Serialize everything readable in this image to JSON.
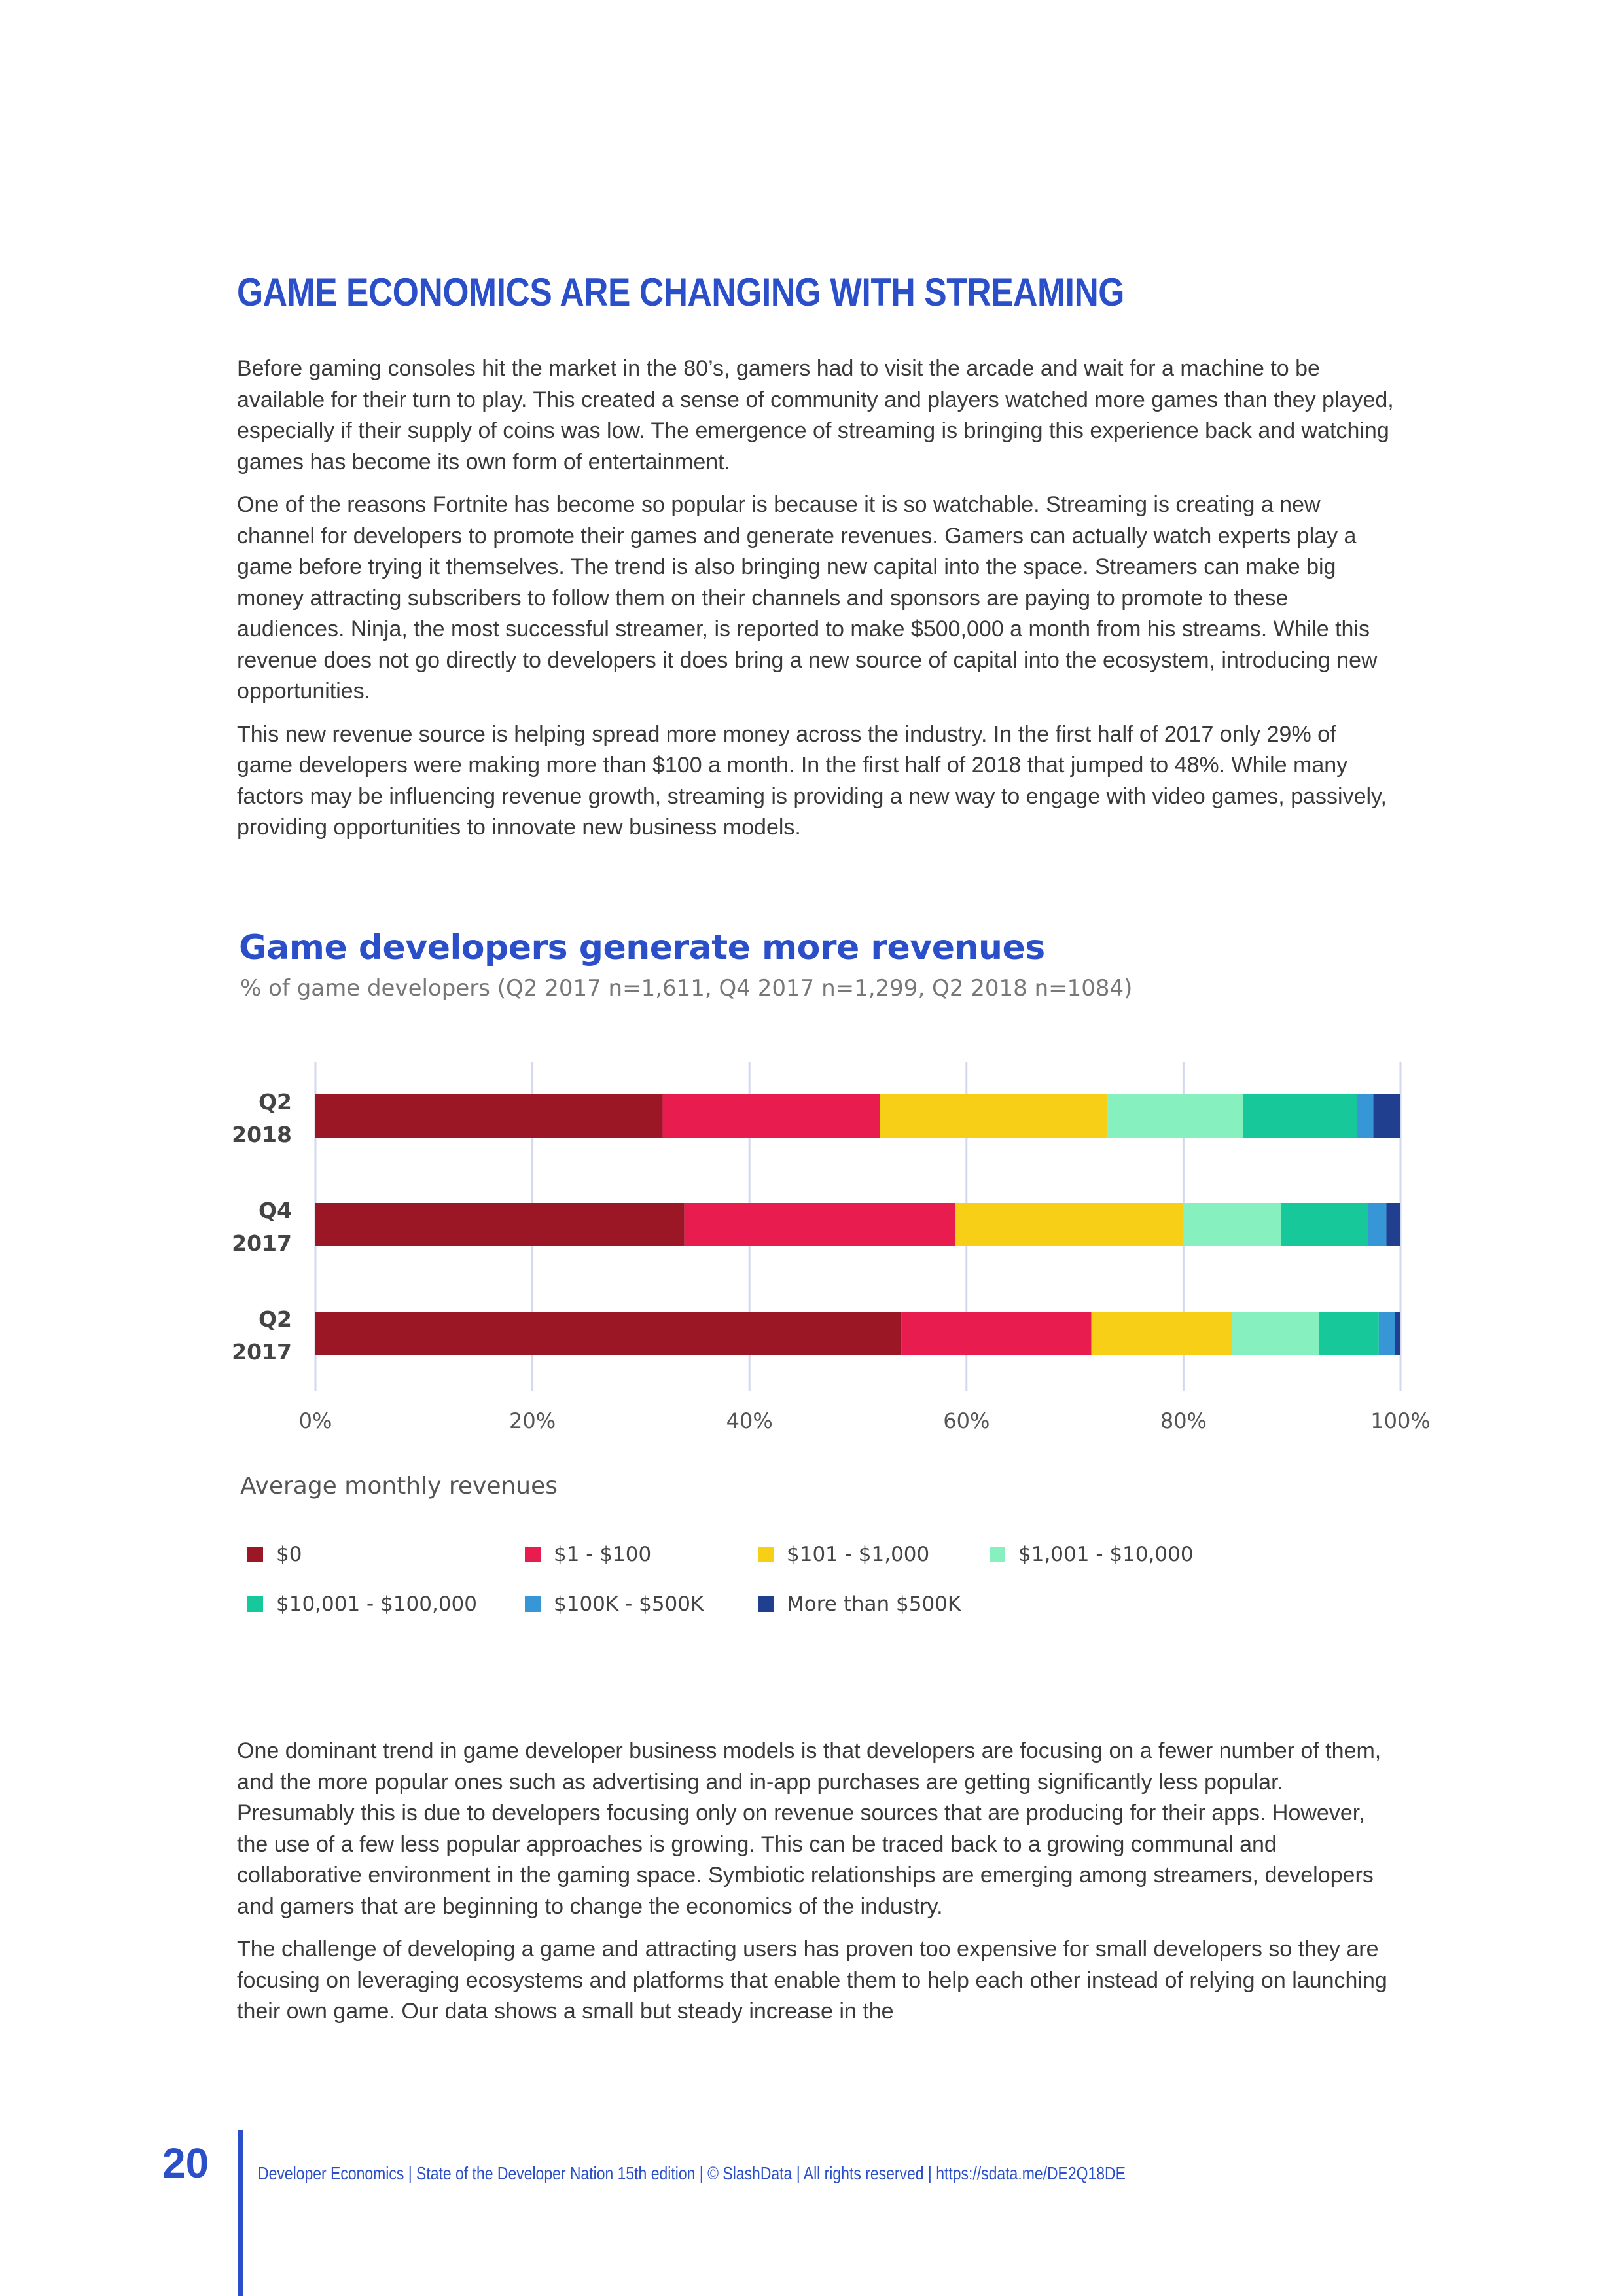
{
  "heading": "GAME ECONOMICS ARE CHANGING WITH STREAMING",
  "intro_paragraphs": [
    "Before gaming consoles hit the market in the 80’s, gamers had to visit the arcade and wait for a machine to be available for their turn to play. This created a sense of community and players watched more games than they played, especially if their supply of coins was low. The emergence of streaming is bringing this experience back and watching games has become its own form of entertainment.",
    "One of the reasons Fortnite has become so popular is because it is so watchable. Streaming is creating a new channel for developers to promote their games and generate revenues. Gamers can actually watch experts play a game before trying it themselves. The trend is also bringing new capital into the space. Streamers can make big money attracting subscribers to follow them on their channels and sponsors are paying to promote to these audiences. Ninja, the most successful streamer, is reported to make $500,000 a month from his streams. While this revenue does not go directly to developers it does bring a new source of capital into the ecosystem, introducing new opportunities.",
    "This new revenue source is helping spread more money across the industry. In the first half of 2017 only 29% of game developers were making more than $100 a month. In the first half of 2018 that jumped to 48%. While many factors may be influencing revenue growth, streaming is providing a new way to engage with video games, passively, providing opportunities to innovate new business models."
  ],
  "chart_data": {
    "type": "bar",
    "orientation": "horizontal",
    "stacked": true,
    "title": "Game developers generate more revenues",
    "subtitle": "% of game developers (Q2 2017 n=1,611, Q4 2017 n=1,299, Q2 2018 n=1084)",
    "categories": [
      [
        "Q2",
        "2018"
      ],
      [
        "Q4",
        "2017"
      ],
      [
        "Q2",
        "2017"
      ]
    ],
    "xlim": [
      0,
      100
    ],
    "x_ticks": [
      "0%",
      "20%",
      "40%",
      "60%",
      "80%",
      "100%"
    ],
    "grid": true,
    "legend_title": "Average monthly revenues",
    "legend_placement": "bottom",
    "series": [
      {
        "name": "$0",
        "color": "#9b1726",
        "values": [
          32,
          34,
          54
        ]
      },
      {
        "name": "$1 - $100",
        "color": "#e81c4f",
        "values": [
          20,
          25,
          17.5
        ]
      },
      {
        "name": "$101 - $1,000",
        "color": "#f8cf17",
        "values": [
          21,
          21,
          13
        ]
      },
      {
        "name": "$1,001 - $10,000",
        "color": "#86f1bf",
        "values": [
          12.5,
          9,
          8
        ]
      },
      {
        "name": "$10,001 - $100,000",
        "color": "#17c99a",
        "values": [
          10.5,
          8,
          5.5
        ]
      },
      {
        "name": "$100K - $500K",
        "color": "#3797d6",
        "values": [
          1.5,
          1.7,
          1.5
        ]
      },
      {
        "name": "More than $500K",
        "color": "#213f8f",
        "values": [
          2.5,
          1.3,
          0.5
        ]
      }
    ]
  },
  "outro_paragraphs": [
    "One dominant trend in game developer business models is that developers are focusing on a fewer number of them, and the more popular ones such as advertising and in-app purchases are getting significantly less popular. Presumably this is due to developers focusing only on revenue sources that are producing for their apps. However, the use of  a few less popular approaches is growing. This can be traced back to a growing communal and collaborative environment in the gaming space. Symbiotic relationships are emerging among streamers, developers and gamers that are beginning to change the economics of the industry.",
    "The challenge of developing a game and attracting users has proven too expensive for small developers so they are focusing on leveraging ecosystems and platforms that enable them to help each other instead of relying on launching their own game. Our data shows a small but steady increase in the"
  ],
  "footer": {
    "page_number": "20",
    "text": "Developer Economics | State of the Developer Nation 15th edition | © SlashData | All rights reserved | https://sdata.me/DE2Q18DE"
  }
}
